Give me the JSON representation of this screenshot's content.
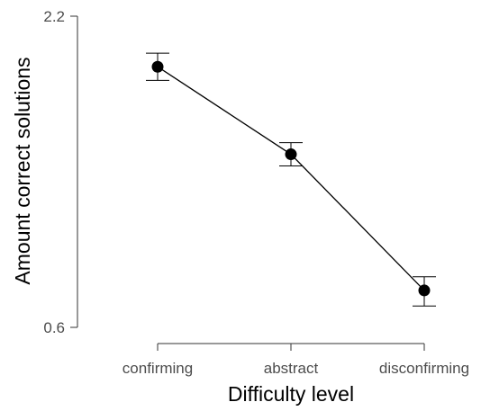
{
  "chart_data": {
    "type": "line",
    "title": "",
    "xlabel": "Difficulty level",
    "ylabel": "Amount correct solutions",
    "categories": [
      "confirming",
      "abstract",
      "disconfirming"
    ],
    "series": [
      {
        "values": [
          1.94,
          1.49,
          0.79
        ],
        "error_low": [
          1.87,
          1.43,
          0.71
        ],
        "error_high": [
          2.01,
          1.55,
          0.86
        ]
      }
    ],
    "ylim": [
      0.6,
      2.2
    ],
    "yticks": [
      "0.6",
      "2.2"
    ],
    "grid": false,
    "legend": "none",
    "colors": {
      "line": "#000000",
      "point": "#000000",
      "errorbar": "#000000",
      "axis": "#333333"
    }
  }
}
